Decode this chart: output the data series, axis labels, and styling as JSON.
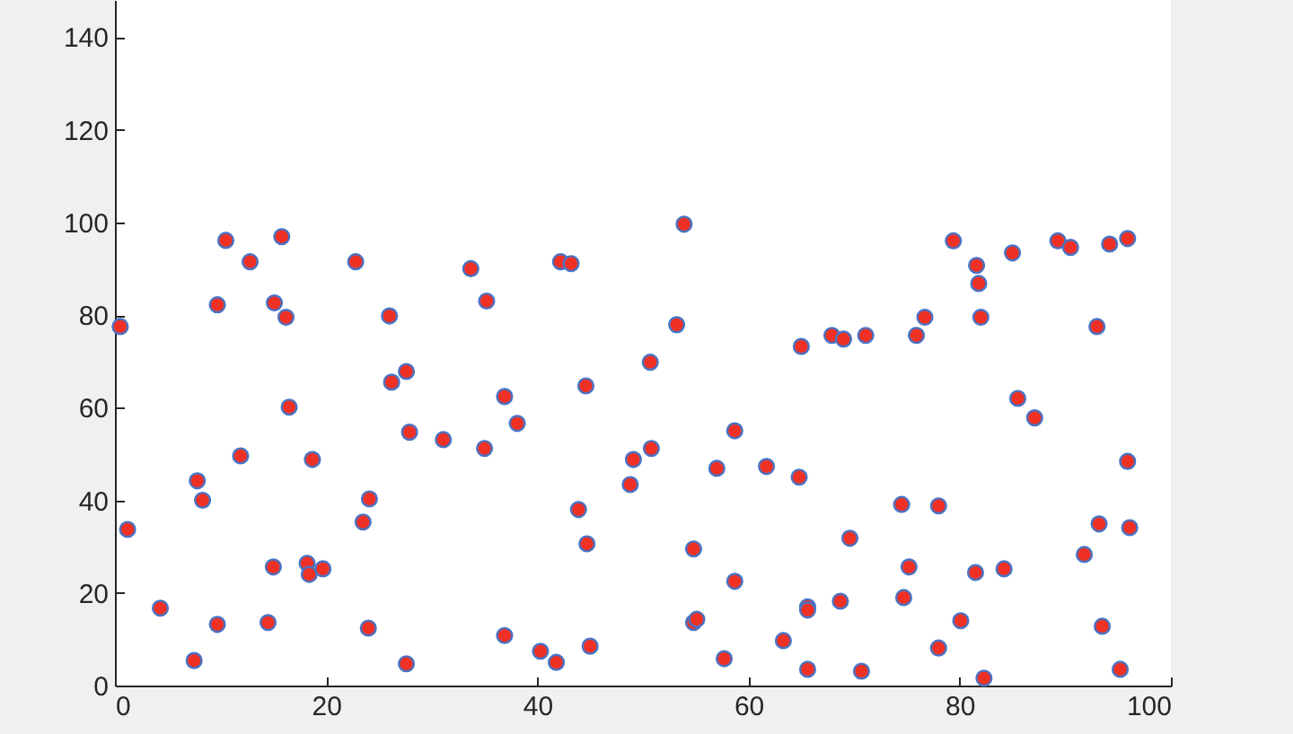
{
  "chart_data": {
    "type": "scatter",
    "x": [
      0.5,
      1.2,
      4.3,
      7.5,
      7.8,
      8.3,
      9.7,
      9.7,
      10.5,
      11.9,
      12.8,
      14.5,
      15,
      15.1,
      15.8,
      16.2,
      16.5,
      18.2,
      18.4,
      18.7,
      19.7,
      22.8,
      23.5,
      24,
      24.1,
      26,
      26.2,
      27.6,
      27.6,
      27.9,
      31.1,
      33.7,
      35,
      35.2,
      36.9,
      36.9,
      38.1,
      40.3,
      41.8,
      42.2,
      43.2,
      43.9,
      44.6,
      44.7,
      45,
      48.8,
      49.1,
      50.7,
      50.8,
      53.2,
      53.9,
      54.8,
      54.8,
      55.1,
      57,
      57.7,
      58.7,
      58.7,
      61.7,
      63.3,
      64.8,
      65,
      65.6,
      65.6,
      65.6,
      67.9,
      68.7,
      69,
      69.6,
      70.7,
      71.1,
      74.5,
      74.7,
      75.2,
      75.9,
      76.7,
      78,
      78,
      79.4,
      80.1,
      81.5,
      81.6,
      81.8,
      82,
      82.3,
      84.2,
      85,
      85.5,
      87.1,
      89.3,
      90.5,
      91.8,
      93,
      93.2,
      93.5,
      94.2,
      95.2,
      95.9,
      95.9,
      96.1
    ],
    "values": [
      77.5,
      33.7,
      16.7,
      5.4,
      44.2,
      40,
      82.2,
      13.2,
      96.1,
      49.6,
      91.5,
      13.6,
      25.6,
      82.6,
      96.9,
      79.5,
      60.1,
      26.4,
      24,
      48.8,
      25.2,
      91.5,
      35.3,
      12.4,
      40.3,
      79.8,
      65.5,
      67.8,
      4.7,
      54.7,
      53.1,
      90,
      51.2,
      83,
      62.4,
      10.8,
      56.6,
      7.4,
      5,
      91.5,
      91.1,
      38,
      64.7,
      30.6,
      8.5,
      43.4,
      48.8,
      69.8,
      51.2,
      77.9,
      99.6,
      29.5,
      13.6,
      14.3,
      46.9,
      5.8,
      55,
      22.5,
      47.3,
      9.7,
      45,
      73.2,
      17,
      16.3,
      3.5,
      75.6,
      18.2,
      74.8,
      31.8,
      3.1,
      75.6,
      39.1,
      19,
      25.6,
      75.6,
      79.5,
      38.8,
      8.1,
      96,
      14,
      24.4,
      90.7,
      86.8,
      79.5,
      1.6,
      25.2,
      93.4,
      62,
      57.8,
      96,
      94.6,
      28.3,
      77.5,
      34.9,
      12.8,
      95.3,
      3.5,
      96.5,
      48.4,
      34.1
    ],
    "color": "#ee3124",
    "marker": "circle",
    "grid": false,
    "xlim": [
      0,
      100
    ],
    "xticks": [
      0,
      20,
      40,
      60,
      80,
      100
    ],
    "ylim": [
      0,
      148
    ],
    "yticks": [
      0,
      20,
      40,
      60,
      80,
      100,
      120,
      140
    ]
  }
}
